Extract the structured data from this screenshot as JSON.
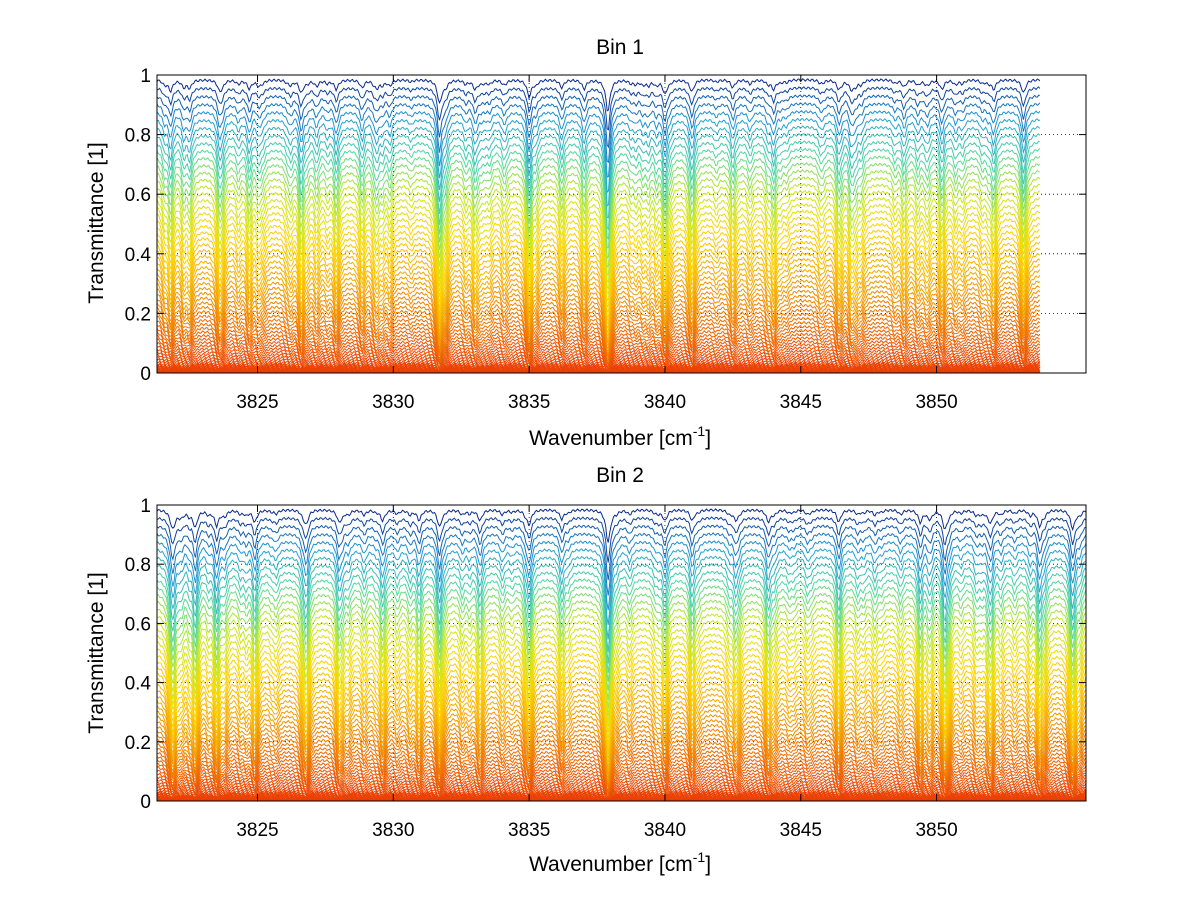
{
  "chart_data": [
    {
      "type": "line",
      "title": "Bin 1",
      "xlabel": "Wavenumber [cm",
      "xlabel_superscript": "-1",
      "xlabel_suffix": "]",
      "ylabel": "Transmittance [1]",
      "xlim": [
        3821.3,
        3855.5
      ],
      "ylim": [
        0,
        1
      ],
      "xticks": [
        3825,
        3830,
        3835,
        3840,
        3845,
        3850
      ],
      "yticks": [
        0,
        0.2,
        0.4,
        0.6,
        0.8,
        1
      ],
      "xtick_labels": [
        "3825",
        "3830",
        "3835",
        "3840",
        "3845",
        "3850"
      ],
      "ytick_labels": [
        "0",
        "0.2",
        "0.4",
        "0.6",
        "0.8",
        "1"
      ],
      "grid": "dotted",
      "series_count": 60,
      "colormap": [
        "#e8200a",
        "#ee6a00",
        "#f5a800",
        "#ffd400",
        "#c8e820",
        "#50d8a0",
        "#1f9ad6",
        "#0a2a8a"
      ],
      "x_end": 3853.8,
      "absorption_lines": [
        {
          "x": 3821.8,
          "strength": 0.35
        },
        {
          "x": 3822.5,
          "strength": 0.25
        },
        {
          "x": 3823.6,
          "strength": 0.3
        },
        {
          "x": 3824.7,
          "strength": 0.28
        },
        {
          "x": 3826.6,
          "strength": 0.3
        },
        {
          "x": 3827.9,
          "strength": 0.3
        },
        {
          "x": 3829.4,
          "strength": 0.22
        },
        {
          "x": 3831.7,
          "strength": 0.75
        },
        {
          "x": 3833.0,
          "strength": 0.25
        },
        {
          "x": 3835.0,
          "strength": 0.55
        },
        {
          "x": 3836.2,
          "strength": 0.25
        },
        {
          "x": 3837.9,
          "strength": 1.0
        },
        {
          "x": 3840.0,
          "strength": 0.45
        },
        {
          "x": 3841.0,
          "strength": 0.35
        },
        {
          "x": 3842.5,
          "strength": 0.25
        },
        {
          "x": 3844.0,
          "strength": 0.3
        },
        {
          "x": 3846.4,
          "strength": 0.28
        },
        {
          "x": 3848.8,
          "strength": 0.22
        },
        {
          "x": 3850.2,
          "strength": 0.25
        },
        {
          "x": 3852.1,
          "strength": 0.3
        },
        {
          "x": 3853.2,
          "strength": 0.35
        }
      ]
    },
    {
      "type": "line",
      "title": "Bin 2",
      "xlabel": "Wavenumber [cm",
      "xlabel_superscript": "-1",
      "xlabel_suffix": "]",
      "ylabel": "Transmittance [1]",
      "xlim": [
        3821.3,
        3855.5
      ],
      "ylim": [
        0,
        1
      ],
      "xticks": [
        3825,
        3830,
        3835,
        3840,
        3845,
        3850
      ],
      "yticks": [
        0,
        0.2,
        0.4,
        0.6,
        0.8,
        1
      ],
      "xtick_labels": [
        "3825",
        "3830",
        "3835",
        "3840",
        "3845",
        "3850"
      ],
      "ytick_labels": [
        "0",
        "0.2",
        "0.4",
        "0.6",
        "0.8",
        "1"
      ],
      "grid": "dotted",
      "series_count": 60,
      "colormap": [
        "#e8200a",
        "#ee6a00",
        "#f5a800",
        "#ffd400",
        "#c8e820",
        "#50d8a0",
        "#1f9ad6",
        "#0a2a8a"
      ],
      "x_end": 3855.5,
      "absorption_lines": [
        {
          "x": 3821.9,
          "strength": 0.45
        },
        {
          "x": 3822.7,
          "strength": 0.4
        },
        {
          "x": 3823.5,
          "strength": 0.35
        },
        {
          "x": 3824.9,
          "strength": 0.4
        },
        {
          "x": 3826.8,
          "strength": 0.4
        },
        {
          "x": 3828.0,
          "strength": 0.35
        },
        {
          "x": 3829.6,
          "strength": 0.3
        },
        {
          "x": 3831.7,
          "strength": 0.55
        },
        {
          "x": 3833.2,
          "strength": 0.3
        },
        {
          "x": 3835.0,
          "strength": 0.45
        },
        {
          "x": 3836.2,
          "strength": 0.3
        },
        {
          "x": 3837.9,
          "strength": 1.0
        },
        {
          "x": 3840.0,
          "strength": 0.35
        },
        {
          "x": 3841.0,
          "strength": 0.35
        },
        {
          "x": 3842.6,
          "strength": 0.3
        },
        {
          "x": 3843.8,
          "strength": 0.35
        },
        {
          "x": 3846.4,
          "strength": 0.4
        },
        {
          "x": 3849.4,
          "strength": 0.4
        },
        {
          "x": 3850.3,
          "strength": 0.55
        },
        {
          "x": 3852.0,
          "strength": 0.35
        },
        {
          "x": 3853.8,
          "strength": 0.4
        },
        {
          "x": 3855.0,
          "strength": 0.55
        }
      ]
    }
  ]
}
